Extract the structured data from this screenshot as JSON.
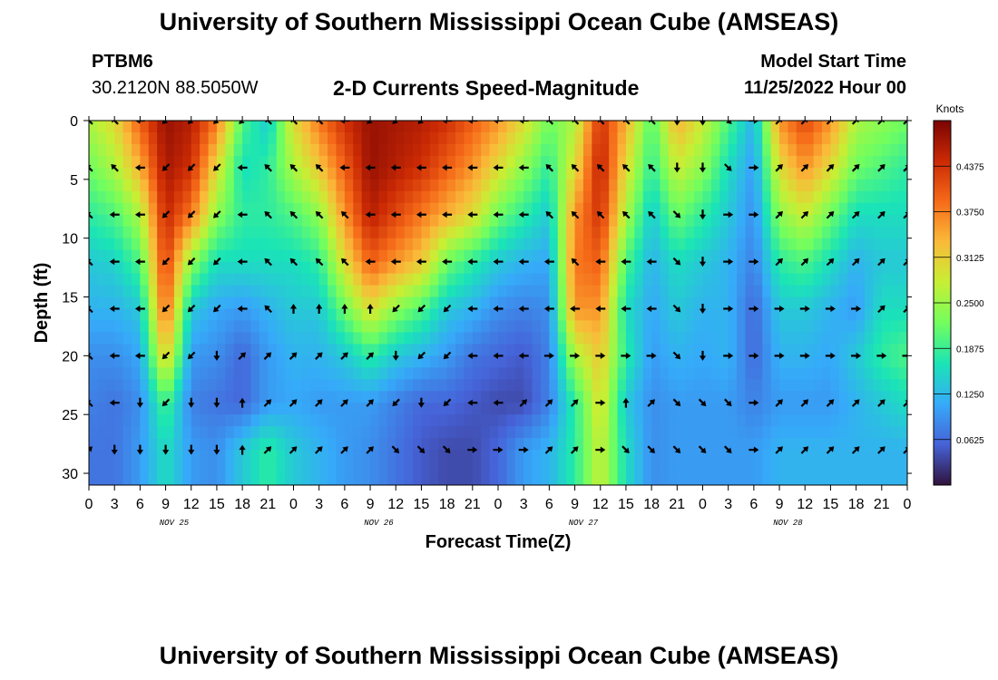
{
  "header": {
    "title": "University of Southern Mississippi Ocean Cube (AMSEAS)",
    "station_id": "PTBM6",
    "station_coords": "30.2120N  88.5050W",
    "subtitle": "2-D Currents Speed-Magnitude",
    "model_start_label": "Model Start Time",
    "model_start_value": "11/25/2022 Hour 00"
  },
  "footer": {
    "title": "University of Southern Mississippi Ocean Cube (AMSEAS)"
  },
  "colors": {
    "background": "#ffffff",
    "text": "#000000",
    "colormap": [
      "#30123b",
      "#4662d7",
      "#36aaf9",
      "#1ae4b6",
      "#72fe5e",
      "#c7ef34",
      "#faba39",
      "#f66b19",
      "#cb2a04",
      "#7a0403"
    ]
  },
  "chart_data": {
    "type": "heatmap",
    "variable": "current speed magnitude with direction vectors",
    "xlabel": "Forecast Time(Z)",
    "ylabel": "Depth (ft)",
    "xlim": [
      0,
      96
    ],
    "ylim": [
      31,
      0
    ],
    "x_ticks": [
      0,
      3,
      6,
      9,
      12,
      15,
      18,
      21,
      24,
      27,
      30,
      33,
      36,
      39,
      42,
      45,
      48,
      51,
      54,
      57,
      60,
      63,
      66,
      69,
      72,
      75,
      78,
      81,
      84,
      87,
      90,
      93,
      96
    ],
    "x_tick_labels": [
      "0",
      "3",
      "6",
      "9",
      "12",
      "15",
      "18",
      "21",
      "0",
      "3",
      "6",
      "9",
      "12",
      "15",
      "18",
      "21",
      "0",
      "3",
      "6",
      "9",
      "12",
      "15",
      "18",
      "21",
      "0",
      "3",
      "6",
      "9",
      "12",
      "15",
      "18",
      "21",
      "0"
    ],
    "y_ticks": [
      0,
      5,
      10,
      15,
      20,
      25,
      30
    ],
    "y_tick_labels": [
      "0",
      "5",
      "10",
      "15",
      "20",
      "25",
      "30"
    ],
    "date_labels": [
      {
        "hour": 10,
        "text": "NOV 25"
      },
      {
        "hour": 34,
        "text": "NOV 26"
      },
      {
        "hour": 58,
        "text": "NOV 27"
      },
      {
        "hour": 82,
        "text": "NOV 28"
      }
    ],
    "colorbar": {
      "title": "Knots",
      "range": [
        0,
        0.5
      ],
      "ticks": [
        0.0625,
        0.125,
        0.1875,
        0.25,
        0.3125,
        0.375,
        0.4375
      ],
      "tick_labels": [
        "0.0625",
        "0.1250",
        "0.1875",
        "0.2500",
        "0.3125",
        "0.3750",
        "0.4375"
      ]
    },
    "speed_columns": [
      {
        "t": 0,
        "speeds": [
          0.26,
          0.22,
          0.18,
          0.14,
          0.12,
          0.09,
          0.08,
          0.07
        ]
      },
      {
        "t": 3,
        "speeds": [
          0.3,
          0.26,
          0.2,
          0.15,
          0.12,
          0.09,
          0.07,
          0.07
        ]
      },
      {
        "t": 6,
        "speeds": [
          0.4,
          0.34,
          0.26,
          0.2,
          0.14,
          0.11,
          0.09,
          0.1
        ]
      },
      {
        "t": 9,
        "speeds": [
          0.48,
          0.47,
          0.45,
          0.43,
          0.4,
          0.32,
          0.2,
          0.16
        ]
      },
      {
        "t": 12,
        "speeds": [
          0.46,
          0.44,
          0.38,
          0.24,
          0.14,
          0.1,
          0.08,
          0.1
        ]
      },
      {
        "t": 15,
        "speeds": [
          0.38,
          0.3,
          0.24,
          0.16,
          0.11,
          0.09,
          0.07,
          0.09
        ]
      },
      {
        "t": 18,
        "speeds": [
          0.2,
          0.16,
          0.18,
          0.16,
          0.1,
          0.06,
          0.06,
          0.14
        ]
      },
      {
        "t": 21,
        "speeds": [
          0.14,
          0.18,
          0.18,
          0.16,
          0.12,
          0.1,
          0.1,
          0.18
        ]
      },
      {
        "t": 24,
        "speeds": [
          0.3,
          0.26,
          0.2,
          0.16,
          0.14,
          0.12,
          0.11,
          0.14
        ]
      },
      {
        "t": 27,
        "speeds": [
          0.38,
          0.32,
          0.24,
          0.18,
          0.14,
          0.12,
          0.1,
          0.12
        ]
      },
      {
        "t": 30,
        "speeds": [
          0.44,
          0.4,
          0.36,
          0.3,
          0.22,
          0.14,
          0.1,
          0.1
        ]
      },
      {
        "t": 33,
        "speeds": [
          0.48,
          0.48,
          0.46,
          0.4,
          0.3,
          0.18,
          0.1,
          0.09
        ]
      },
      {
        "t": 36,
        "speeds": [
          0.47,
          0.46,
          0.42,
          0.36,
          0.24,
          0.14,
          0.08,
          0.07
        ]
      },
      {
        "t": 39,
        "speeds": [
          0.46,
          0.44,
          0.38,
          0.32,
          0.2,
          0.12,
          0.06,
          0.05
        ]
      },
      {
        "t": 42,
        "speeds": [
          0.44,
          0.4,
          0.34,
          0.22,
          0.14,
          0.1,
          0.06,
          0.04
        ]
      },
      {
        "t": 45,
        "speeds": [
          0.4,
          0.36,
          0.3,
          0.18,
          0.12,
          0.07,
          0.05,
          0.04
        ]
      },
      {
        "t": 48,
        "speeds": [
          0.36,
          0.3,
          0.22,
          0.14,
          0.09,
          0.06,
          0.04,
          0.06
        ]
      },
      {
        "t": 51,
        "speeds": [
          0.3,
          0.24,
          0.18,
          0.12,
          0.08,
          0.05,
          0.04,
          0.1
        ]
      },
      {
        "t": 54,
        "speeds": [
          0.22,
          0.18,
          0.14,
          0.11,
          0.09,
          0.08,
          0.08,
          0.12
        ]
      },
      {
        "t": 57,
        "speeds": [
          0.26,
          0.3,
          0.36,
          0.38,
          0.36,
          0.26,
          0.18,
          0.18
        ]
      },
      {
        "t": 60,
        "speeds": [
          0.44,
          0.46,
          0.44,
          0.4,
          0.36,
          0.32,
          0.3,
          0.28
        ]
      },
      {
        "t": 63,
        "speeds": [
          0.34,
          0.3,
          0.26,
          0.2,
          0.16,
          0.18,
          0.14,
          0.16
        ]
      },
      {
        "t": 66,
        "speeds": [
          0.2,
          0.18,
          0.14,
          0.12,
          0.11,
          0.1,
          0.09,
          0.09
        ]
      },
      {
        "t": 69,
        "speeds": [
          0.34,
          0.28,
          0.22,
          0.16,
          0.14,
          0.12,
          0.1,
          0.1
        ]
      },
      {
        "t": 72,
        "speeds": [
          0.28,
          0.24,
          0.18,
          0.14,
          0.12,
          0.11,
          0.1,
          0.1
        ]
      },
      {
        "t": 75,
        "speeds": [
          0.2,
          0.16,
          0.14,
          0.12,
          0.12,
          0.12,
          0.1,
          0.1
        ]
      },
      {
        "t": 78,
        "speeds": [
          0.12,
          0.1,
          0.09,
          0.08,
          0.06,
          0.06,
          0.08,
          0.1
        ]
      },
      {
        "t": 81,
        "speeds": [
          0.36,
          0.3,
          0.24,
          0.18,
          0.14,
          0.12,
          0.1,
          0.12
        ]
      },
      {
        "t": 84,
        "speeds": [
          0.42,
          0.36,
          0.28,
          0.2,
          0.14,
          0.12,
          0.1,
          0.12
        ]
      },
      {
        "t": 87,
        "speeds": [
          0.36,
          0.3,
          0.22,
          0.16,
          0.12,
          0.11,
          0.1,
          0.12
        ]
      },
      {
        "t": 90,
        "speeds": [
          0.26,
          0.22,
          0.16,
          0.12,
          0.1,
          0.14,
          0.12,
          0.12
        ]
      },
      {
        "t": 93,
        "speeds": [
          0.24,
          0.2,
          0.16,
          0.14,
          0.16,
          0.18,
          0.14,
          0.12
        ]
      },
      {
        "t": 96,
        "speeds": [
          0.22,
          0.18,
          0.16,
          0.14,
          0.16,
          0.2,
          0.16,
          0.12
        ]
      }
    ],
    "speed_depths_ft": [
      0,
      4,
      8,
      12,
      16,
      20,
      24,
      28
    ],
    "vector_depths_ft": [
      0,
      4,
      8,
      12,
      16,
      20,
      24,
      28
    ],
    "vectors": [
      {
        "t": 0,
        "dirs_deg": [
          315,
          315,
          315,
          315,
          315,
          315,
          315,
          45
        ]
      },
      {
        "t": 3,
        "dirs_deg": [
          315,
          315,
          270,
          270,
          270,
          270,
          270,
          180
        ]
      },
      {
        "t": 6,
        "dirs_deg": [
          270,
          270,
          270,
          270,
          270,
          270,
          180,
          180
        ]
      },
      {
        "t": 9,
        "dirs_deg": [
          225,
          225,
          225,
          225,
          225,
          225,
          225,
          180
        ]
      },
      {
        "t": 12,
        "dirs_deg": [
          225,
          225,
          225,
          225,
          225,
          225,
          180,
          180
        ]
      },
      {
        "t": 15,
        "dirs_deg": [
          225,
          225,
          225,
          225,
          225,
          180,
          180,
          180
        ]
      },
      {
        "t": 18,
        "dirs_deg": [
          225,
          270,
          270,
          270,
          270,
          45,
          0,
          0
        ]
      },
      {
        "t": 21,
        "dirs_deg": [
          315,
          315,
          315,
          315,
          315,
          45,
          45,
          45
        ]
      },
      {
        "t": 24,
        "dirs_deg": [
          315,
          315,
          315,
          315,
          0,
          45,
          45,
          45
        ]
      },
      {
        "t": 27,
        "dirs_deg": [
          315,
          315,
          315,
          315,
          0,
          45,
          45,
          45
        ]
      },
      {
        "t": 30,
        "dirs_deg": [
          270,
          270,
          315,
          315,
          0,
          45,
          45,
          45
        ]
      },
      {
        "t": 33,
        "dirs_deg": [
          225,
          270,
          270,
          270,
          0,
          45,
          45,
          45
        ]
      },
      {
        "t": 36,
        "dirs_deg": [
          225,
          270,
          270,
          270,
          225,
          180,
          225,
          135
        ]
      },
      {
        "t": 39,
        "dirs_deg": [
          225,
          270,
          270,
          270,
          225,
          225,
          180,
          135
        ]
      },
      {
        "t": 42,
        "dirs_deg": [
          270,
          270,
          270,
          270,
          225,
          225,
          225,
          135
        ]
      },
      {
        "t": 45,
        "dirs_deg": [
          270,
          270,
          270,
          270,
          270,
          270,
          270,
          90
        ]
      },
      {
        "t": 48,
        "dirs_deg": [
          270,
          270,
          270,
          270,
          270,
          270,
          270,
          90
        ]
      },
      {
        "t": 51,
        "dirs_deg": [
          270,
          270,
          270,
          270,
          270,
          270,
          45,
          90
        ]
      },
      {
        "t": 54,
        "dirs_deg": [
          315,
          315,
          315,
          270,
          270,
          90,
          45,
          45
        ]
      },
      {
        "t": 57,
        "dirs_deg": [
          315,
          315,
          315,
          315,
          270,
          90,
          45,
          45
        ]
      },
      {
        "t": 60,
        "dirs_deg": [
          315,
          315,
          315,
          270,
          270,
          90,
          90,
          90
        ]
      },
      {
        "t": 63,
        "dirs_deg": [
          315,
          315,
          315,
          270,
          270,
          90,
          0,
          135
        ]
      },
      {
        "t": 66,
        "dirs_deg": [
          315,
          315,
          315,
          270,
          270,
          90,
          45,
          135
        ]
      },
      {
        "t": 69,
        "dirs_deg": [
          180,
          180,
          135,
          135,
          135,
          135,
          135,
          135
        ]
      },
      {
        "t": 72,
        "dirs_deg": [
          180,
          180,
          180,
          180,
          180,
          180,
          135,
          135
        ]
      },
      {
        "t": 75,
        "dirs_deg": [
          135,
          135,
          90,
          90,
          90,
          90,
          135,
          135
        ]
      },
      {
        "t": 78,
        "dirs_deg": [
          90,
          90,
          90,
          90,
          90,
          90,
          90,
          90
        ]
      },
      {
        "t": 81,
        "dirs_deg": [
          45,
          45,
          45,
          45,
          90,
          90,
          45,
          45
        ]
      },
      {
        "t": 84,
        "dirs_deg": [
          45,
          45,
          45,
          45,
          90,
          90,
          45,
          45
        ]
      },
      {
        "t": 87,
        "dirs_deg": [
          45,
          45,
          45,
          45,
          90,
          90,
          45,
          45
        ]
      },
      {
        "t": 90,
        "dirs_deg": [
          45,
          45,
          45,
          45,
          90,
          90,
          45,
          45
        ]
      },
      {
        "t": 93,
        "dirs_deg": [
          45,
          45,
          45,
          45,
          45,
          90,
          45,
          45
        ]
      },
      {
        "t": 96,
        "dirs_deg": [
          45,
          45,
          45,
          45,
          45,
          90,
          45,
          45
        ]
      }
    ]
  }
}
